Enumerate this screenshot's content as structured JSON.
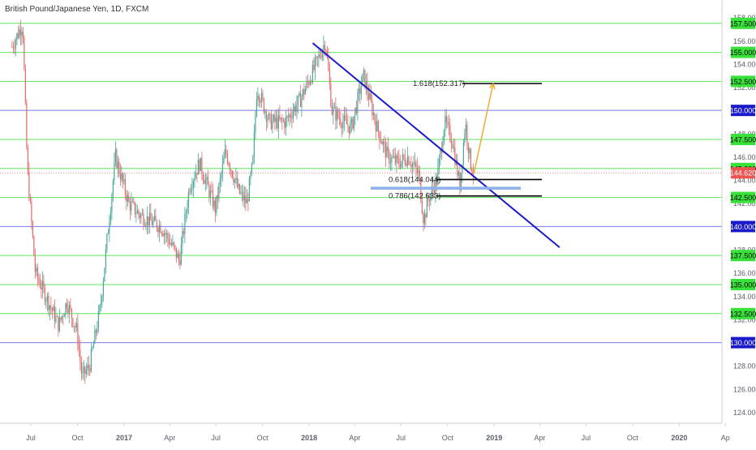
{
  "header": {
    "symbol_title": "British Pound/Japanese Yen, 1D, FXCM"
  },
  "colors": {
    "up_candle": "#4aa79b",
    "down_candle": "#e36c6c",
    "green_level": "#5ee65e",
    "blue_level": "#7777ee",
    "trendline": "#1a1acd",
    "arrow": "#f5a623",
    "fib_line": "#000000",
    "support_zone": "#8fb2ec",
    "last_price_line": "#e57c7c",
    "green_label_bg": "#39e239",
    "blue_label_bg": "#1a1acd",
    "price_label_bg": "#ef5350",
    "axis_text": "#5d606b"
  },
  "chart_data": {
    "type": "candlestick",
    "title": "",
    "symbol": "British Pound/Japanese Yen",
    "interval": "1D",
    "source": "FXCM",
    "last_price": 144.62,
    "last_price_label": "144.620",
    "ylim": [
      123.0,
      159.0
    ],
    "y_tick_labels": [
      "124.000",
      "126.000",
      "128.000",
      "130.000",
      "132.000",
      "134.000",
      "136.000",
      "138.000",
      "140.000",
      "142.000",
      "144.000",
      "146.000",
      "148.000",
      "150.000",
      "152.000",
      "154.000",
      "156.000",
      "158.000"
    ],
    "x_tick_labels": [
      "Jul",
      "Oct",
      "2017",
      "Apr",
      "Jul",
      "Oct",
      "2018",
      "Apr",
      "Jul",
      "Oct",
      "2019",
      "Apr",
      "Jul",
      "Oct",
      "2020",
      "Ap"
    ],
    "horizontal_levels": [
      {
        "value": 157.5,
        "label": "157.500",
        "kind": "green"
      },
      {
        "value": 155.0,
        "label": "155.000",
        "kind": "green"
      },
      {
        "value": 152.5,
        "label": "152.500",
        "kind": "green"
      },
      {
        "value": 150.0,
        "label": "150.000",
        "kind": "blue"
      },
      {
        "value": 147.5,
        "label": "147.500",
        "kind": "green"
      },
      {
        "value": 145.0,
        "label": "145.000",
        "kind": "green"
      },
      {
        "value": 142.5,
        "label": "142.500",
        "kind": "green"
      },
      {
        "value": 140.0,
        "label": "140.000",
        "kind": "blue"
      },
      {
        "value": 137.5,
        "label": "137.500",
        "kind": "green"
      },
      {
        "value": 135.0,
        "label": "135.000",
        "kind": "green"
      },
      {
        "value": 132.5,
        "label": "132.500",
        "kind": "green"
      },
      {
        "value": 130.0,
        "label": "130.000",
        "kind": "blue"
      }
    ],
    "fib_levels": [
      {
        "ratio": "1.618",
        "value": 152.317,
        "label": "1.618(152.317)"
      },
      {
        "ratio": "0.618",
        "value": 144.044,
        "label": "0.618(144.044)"
      },
      {
        "ratio": "0.786",
        "value": 142.633,
        "label": "0.786(142.633)"
      }
    ],
    "support_zone": {
      "value": 143.3
    },
    "trendline": {
      "start": {
        "x": "2018-01-08",
        "y": 155.8
      },
      "end": {
        "x": "2019-05-10",
        "y": 138.2
      }
    },
    "projection_arrow": {
      "start": {
        "x": "2018-11-22",
        "y": 144.6
      },
      "end": {
        "x": "2018-12-30",
        "y": 152.3
      }
    },
    "price_path": [
      {
        "x": "2016-05-25",
        "y": 155.5
      },
      {
        "x": "2016-06-15",
        "y": 157.5
      },
      {
        "x": "2016-06-24",
        "y": 145.0
      },
      {
        "x": "2016-07-10",
        "y": 136.0
      },
      {
        "x": "2016-08-05",
        "y": 133.5
      },
      {
        "x": "2016-08-25",
        "y": 131.5
      },
      {
        "x": "2016-09-10",
        "y": 133.5
      },
      {
        "x": "2016-09-30",
        "y": 131.0
      },
      {
        "x": "2016-10-10",
        "y": 127.0
      },
      {
        "x": "2016-10-25",
        "y": 128.0
      },
      {
        "x": "2016-11-15",
        "y": 133.0
      },
      {
        "x": "2016-12-01",
        "y": 140.0
      },
      {
        "x": "2016-12-15",
        "y": 146.0
      },
      {
        "x": "2017-01-10",
        "y": 142.0
      },
      {
        "x": "2017-02-01",
        "y": 141.0
      },
      {
        "x": "2017-02-20",
        "y": 140.5
      },
      {
        "x": "2017-03-15",
        "y": 140.0
      },
      {
        "x": "2017-04-10",
        "y": 138.0
      },
      {
        "x": "2017-04-20",
        "y": 137.0
      },
      {
        "x": "2017-05-10",
        "y": 143.5
      },
      {
        "x": "2017-05-30",
        "y": 145.5
      },
      {
        "x": "2017-06-10",
        "y": 144.0
      },
      {
        "x": "2017-06-30",
        "y": 141.5
      },
      {
        "x": "2017-07-20",
        "y": 146.5
      },
      {
        "x": "2017-08-15",
        "y": 143.0
      },
      {
        "x": "2017-08-31",
        "y": 142.0
      },
      {
        "x": "2017-09-12",
        "y": 145.5
      },
      {
        "x": "2017-09-20",
        "y": 152.0
      },
      {
        "x": "2017-10-15",
        "y": 149.0
      },
      {
        "x": "2017-11-15",
        "y": 149.0
      },
      {
        "x": "2017-12-15",
        "y": 151.0
      },
      {
        "x": "2018-01-10",
        "y": 153.5
      },
      {
        "x": "2018-02-02",
        "y": 156.0
      },
      {
        "x": "2018-02-15",
        "y": 150.0
      },
      {
        "x": "2018-03-10",
        "y": 149.0
      },
      {
        "x": "2018-03-25",
        "y": 148.5
      },
      {
        "x": "2018-04-18",
        "y": 153.0
      },
      {
        "x": "2018-05-15",
        "y": 148.5
      },
      {
        "x": "2018-06-05",
        "y": 146.0
      },
      {
        "x": "2018-06-25",
        "y": 145.5
      },
      {
        "x": "2018-07-15",
        "y": 146.0
      },
      {
        "x": "2018-08-05",
        "y": 144.5
      },
      {
        "x": "2018-08-15",
        "y": 140.5
      },
      {
        "x": "2018-08-25",
        "y": 142.5
      },
      {
        "x": "2018-09-10",
        "y": 144.0
      },
      {
        "x": "2018-09-25",
        "y": 149.0
      },
      {
        "x": "2018-10-10",
        "y": 147.5
      },
      {
        "x": "2018-10-25",
        "y": 143.5
      },
      {
        "x": "2018-11-05",
        "y": 149.0
      },
      {
        "x": "2018-11-15",
        "y": 145.5
      },
      {
        "x": "2018-11-22",
        "y": 144.6
      }
    ]
  }
}
